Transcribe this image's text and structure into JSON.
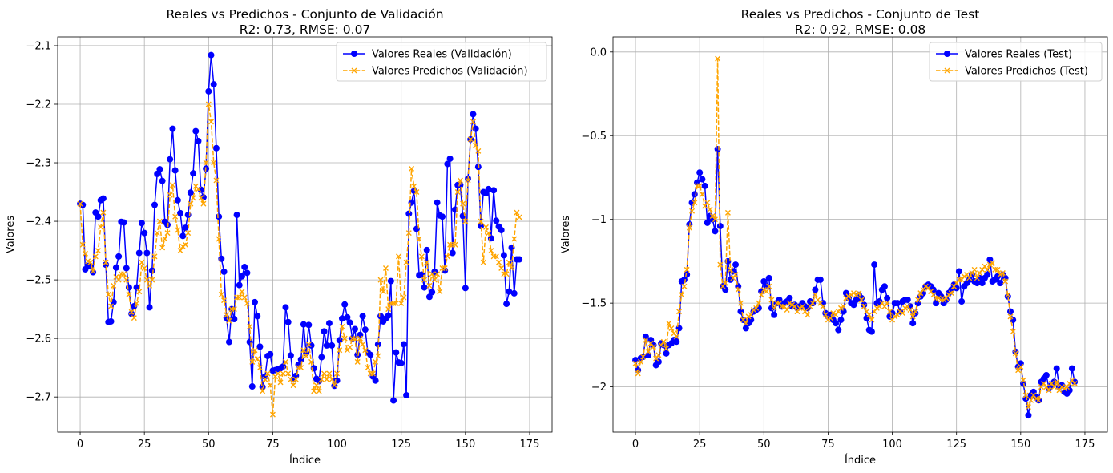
{
  "chart_data": [
    {
      "type": "line",
      "title": "Reales vs Predichos - Conjunto de Validación",
      "subtitle": "R2: 0.73, RMSE: 0.07",
      "xlabel": "Índice",
      "ylabel": "Valores",
      "xlim": [
        -8.75,
        183.75
      ],
      "ylim": [
        -2.76,
        -2.085
      ],
      "xticks": [
        0,
        25,
        50,
        75,
        100,
        125,
        150,
        175
      ],
      "yticks": [
        -2.7,
        -2.6,
        -2.5,
        -2.4,
        -2.3,
        -2.2,
        -2.1
      ],
      "grid": true,
      "legend_position": "top-right",
      "series": [
        {
          "name": "Valores Reales (Validación)",
          "color": "#0000ff",
          "style": "solid",
          "marker": "circle",
          "values": [
            -2.37,
            -2.372,
            -2.482,
            -2.476,
            -2.477,
            -2.487,
            -2.385,
            -2.392,
            -2.364,
            -2.361,
            -2.474,
            -2.572,
            -2.571,
            -2.538,
            -2.479,
            -2.46,
            -2.401,
            -2.402,
            -2.48,
            -2.513,
            -2.558,
            -2.545,
            -2.513,
            -2.454,
            -2.403,
            -2.42,
            -2.454,
            -2.547,
            -2.484,
            -2.372,
            -2.319,
            -2.311,
            -2.331,
            -2.401,
            -2.406,
            -2.294,
            -2.242,
            -2.313,
            -2.364,
            -2.386,
            -2.425,
            -2.411,
            -2.389,
            -2.351,
            -2.318,
            -2.246,
            -2.263,
            -2.346,
            -2.359,
            -2.31,
            -2.178,
            -2.116,
            -2.166,
            -2.275,
            -2.392,
            -2.464,
            -2.486,
            -2.565,
            -2.606,
            -2.55,
            -2.567,
            -2.389,
            -2.509,
            -2.494,
            -2.478,
            -2.488,
            -2.606,
            -2.682,
            -2.538,
            -2.562,
            -2.614,
            -2.683,
            -2.665,
            -2.63,
            -2.627,
            -2.655,
            -2.654,
            -2.652,
            -2.651,
            -2.648,
            -2.547,
            -2.572,
            -2.629,
            -2.67,
            -2.664,
            -2.645,
            -2.636,
            -2.576,
            -2.625,
            -2.577,
            -2.612,
            -2.651,
            -2.669,
            -2.673,
            -2.632,
            -2.588,
            -2.612,
            -2.574,
            -2.612,
            -2.681,
            -2.672,
            -2.603,
            -2.566,
            -2.542,
            -2.564,
            -2.573,
            -2.6,
            -2.584,
            -2.628,
            -2.594,
            -2.562,
            -2.585,
            -2.624,
            -2.628,
            -2.665,
            -2.672,
            -2.61,
            -2.562,
            -2.571,
            -2.566,
            -2.561,
            -2.502,
            -2.706,
            -2.624,
            -2.641,
            -2.642,
            -2.61,
            -2.697,
            -2.387,
            -2.368,
            -2.348,
            -2.413,
            -2.492,
            -2.491,
            -2.513,
            -2.449,
            -2.529,
            -2.521,
            -2.486,
            -2.368,
            -2.39,
            -2.392,
            -2.484,
            -2.302,
            -2.293,
            -2.454,
            -2.38,
            -2.338,
            -2.338,
            -2.391,
            -2.514,
            -2.327,
            -2.26,
            -2.217,
            -2.242,
            -2.307,
            -2.408,
            -2.35,
            -2.352,
            -2.345,
            -2.429,
            -2.347,
            -2.399,
            -2.409,
            -2.415,
            -2.458,
            -2.541,
            -2.52,
            -2.445,
            -2.523,
            -2.465,
            -2.465
          ]
        },
        {
          "name": "Valores Predichos (Validación)",
          "color": "#ffa500",
          "style": "dashed",
          "marker": "x",
          "values": [
            -2.37,
            -2.44,
            -2.455,
            -2.468,
            -2.47,
            -2.485,
            -2.46,
            -2.45,
            -2.41,
            -2.385,
            -2.47,
            -2.525,
            -2.545,
            -2.51,
            -2.495,
            -2.5,
            -2.49,
            -2.49,
            -2.5,
            -2.525,
            -2.555,
            -2.565,
            -2.54,
            -2.52,
            -2.47,
            -2.48,
            -2.5,
            -2.51,
            -2.5,
            -2.46,
            -2.42,
            -2.4,
            -2.445,
            -2.43,
            -2.42,
            -2.355,
            -2.338,
            -2.392,
            -2.415,
            -2.45,
            -2.443,
            -2.44,
            -2.42,
            -2.37,
            -2.36,
            -2.34,
            -2.345,
            -2.36,
            -2.37,
            -2.3,
            -2.2,
            -2.23,
            -2.3,
            -2.33,
            -2.43,
            -2.525,
            -2.535,
            -2.56,
            -2.57,
            -2.55,
            -2.55,
            -2.53,
            -2.53,
            -2.52,
            -2.53,
            -2.54,
            -2.58,
            -2.64,
            -2.62,
            -2.635,
            -2.65,
            -2.69,
            -2.67,
            -2.66,
            -2.68,
            -2.73,
            -2.665,
            -2.66,
            -2.675,
            -2.66,
            -2.64,
            -2.66,
            -2.67,
            -2.68,
            -2.67,
            -2.65,
            -2.65,
            -2.62,
            -2.63,
            -2.61,
            -2.64,
            -2.69,
            -2.68,
            -2.69,
            -2.67,
            -2.66,
            -2.67,
            -2.66,
            -2.67,
            -2.68,
            -2.66,
            -2.62,
            -2.58,
            -2.6,
            -2.62,
            -2.615,
            -2.6,
            -2.6,
            -2.64,
            -2.6,
            -2.61,
            -2.62,
            -2.65,
            -2.66,
            -2.66,
            -2.64,
            -2.63,
            -2.5,
            -2.52,
            -2.48,
            -2.55,
            -2.54,
            -2.54,
            -2.54,
            -2.46,
            -2.54,
            -2.53,
            -2.47,
            -2.42,
            -2.31,
            -2.34,
            -2.35,
            -2.43,
            -2.46,
            -2.5,
            -2.47,
            -2.51,
            -2.49,
            -2.5,
            -2.49,
            -2.52,
            -2.48,
            -2.48,
            -2.46,
            -2.44,
            -2.44,
            -2.44,
            -2.35,
            -2.33,
            -2.37,
            -2.4,
            -2.33,
            -2.26,
            -2.23,
            -2.27,
            -2.28,
            -2.4,
            -2.47,
            -2.41,
            -2.42,
            -2.45,
            -2.46,
            -2.46,
            -2.47,
            -2.48,
            -2.49,
            -2.49,
            -2.47,
            -2.48,
            -2.43,
            -2.385,
            -2.393
          ]
        }
      ]
    },
    {
      "type": "line",
      "title": "Reales vs Predichos - Conjunto de Test",
      "subtitle": "R2: 0.92, RMSE: 0.08",
      "xlabel": "Índice",
      "ylabel": "Valores",
      "xlim": [
        -8.75,
        183.75
      ],
      "ylim": [
        -2.27,
        0.09
      ],
      "xticks": [
        0,
        25,
        50,
        75,
        100,
        125,
        150,
        175
      ],
      "yticks": [
        -2.0,
        -1.5,
        -1.0,
        -0.5,
        0.0
      ],
      "grid": true,
      "legend_position": "top-right",
      "series": [
        {
          "name": "Valores Reales (Test)",
          "color": "#0000ff",
          "style": "solid",
          "marker": "circle",
          "values": [
            -1.84,
            -1.9,
            -1.83,
            -1.82,
            -1.7,
            -1.81,
            -1.72,
            -1.75,
            -1.87,
            -1.85,
            -1.74,
            -1.75,
            -1.8,
            -1.75,
            -1.74,
            -1.72,
            -1.73,
            -1.65,
            -1.37,
            -1.36,
            -1.33,
            -1.03,
            -0.9,
            -0.85,
            -0.78,
            -0.72,
            -0.76,
            -0.8,
            -1.02,
            -0.98,
            -1.0,
            -1.07,
            -0.58,
            -1.04,
            -1.4,
            -1.42,
            -1.25,
            -1.36,
            -1.31,
            -1.27,
            -1.4,
            -1.55,
            -1.6,
            -1.65,
            -1.62,
            -1.6,
            -1.55,
            -1.54,
            -1.53,
            -1.43,
            -1.37,
            -1.4,
            -1.35,
            -1.53,
            -1.57,
            -1.5,
            -1.48,
            -1.52,
            -1.5,
            -1.49,
            -1.47,
            -1.52,
            -1.51,
            -1.53,
            -1.52,
            -1.5,
            -1.52,
            -1.53,
            -1.49,
            -1.5,
            -1.42,
            -1.36,
            -1.36,
            -1.5,
            -1.56,
            -1.58,
            -1.57,
            -1.6,
            -1.62,
            -1.66,
            -1.6,
            -1.55,
            -1.44,
            -1.47,
            -1.5,
            -1.51,
            -1.48,
            -1.45,
            -1.47,
            -1.51,
            -1.59,
            -1.66,
            -1.67,
            -1.27,
            -1.5,
            -1.49,
            -1.42,
            -1.4,
            -1.47,
            -1.58,
            -1.56,
            -1.5,
            -1.5,
            -1.55,
            -1.49,
            -1.48,
            -1.48,
            -1.52,
            -1.62,
            -1.56,
            -1.5,
            -1.46,
            -1.44,
            -1.4,
            -1.39,
            -1.4,
            -1.42,
            -1.5,
            -1.44,
            -1.46,
            -1.5,
            -1.48,
            -1.44,
            -1.42,
            -1.39,
            -1.41,
            -1.31,
            -1.49,
            -1.4,
            -1.38,
            -1.36,
            -1.33,
            -1.37,
            -1.38,
            -1.35,
            -1.38,
            -1.35,
            -1.33,
            -1.24,
            -1.37,
            -1.36,
            -1.34,
            -1.38,
            -1.33,
            -1.35,
            -1.46,
            -1.55,
            -1.6,
            -1.79,
            -1.88,
            -1.86,
            -1.98,
            -2.07,
            -2.17,
            -2.05,
            -2.03,
            -2.06,
            -2.08,
            -1.97,
            -1.95,
            -1.93,
            -2.01,
            -1.99,
            -1.97,
            -1.89,
            -2.0,
            -1.99,
            -2.03,
            -2.04,
            -2.02,
            -1.89,
            -1.97
          ]
        },
        {
          "name": "Valores Predichos (Test)",
          "color": "#ffa500",
          "style": "dashed",
          "marker": "x",
          "values": [
            -1.86,
            -1.92,
            -1.85,
            -1.82,
            -1.72,
            -1.79,
            -1.74,
            -1.76,
            -1.83,
            -1.81,
            -1.75,
            -1.73,
            -1.77,
            -1.62,
            -1.65,
            -1.68,
            -1.7,
            -1.55,
            -1.45,
            -1.4,
            -1.3,
            -1.05,
            -0.95,
            -0.9,
            -0.8,
            -0.8,
            -0.85,
            -0.92,
            -0.9,
            -0.94,
            -0.98,
            -1.0,
            -0.04,
            -1.27,
            -1.4,
            -1.38,
            -0.96,
            -1.3,
            -1.35,
            -1.33,
            -1.42,
            -1.5,
            -1.6,
            -1.62,
            -1.58,
            -1.57,
            -1.54,
            -1.53,
            -1.5,
            -1.45,
            -1.42,
            -1.43,
            -1.4,
            -1.48,
            -1.53,
            -1.5,
            -1.5,
            -1.52,
            -1.52,
            -1.54,
            -1.5,
            -1.51,
            -1.52,
            -1.55,
            -1.53,
            -1.52,
            -1.55,
            -1.57,
            -1.52,
            -1.5,
            -1.45,
            -1.48,
            -1.5,
            -1.52,
            -1.57,
            -1.6,
            -1.59,
            -1.56,
            -1.57,
            -1.55,
            -1.53,
            -1.52,
            -1.47,
            -1.46,
            -1.45,
            -1.44,
            -1.45,
            -1.44,
            -1.48,
            -1.52,
            -1.55,
            -1.57,
            -1.6,
            -1.55,
            -1.53,
            -1.52,
            -1.5,
            -1.52,
            -1.5,
            -1.55,
            -1.6,
            -1.58,
            -1.57,
            -1.55,
            -1.56,
            -1.53,
            -1.52,
            -1.54,
            -1.58,
            -1.55,
            -1.48,
            -1.44,
            -1.42,
            -1.4,
            -1.41,
            -1.43,
            -1.45,
            -1.47,
            -1.47,
            -1.48,
            -1.48,
            -1.47,
            -1.45,
            -1.44,
            -1.4,
            -1.38,
            -1.36,
            -1.36,
            -1.34,
            -1.33,
            -1.35,
            -1.32,
            -1.3,
            -1.35,
            -1.32,
            -1.3,
            -1.28,
            -1.3,
            -1.27,
            -1.26,
            -1.3,
            -1.3,
            -1.33,
            -1.32,
            -1.37,
            -1.45,
            -1.58,
            -1.67,
            -1.8,
            -1.9,
            -1.88,
            -1.96,
            -2.05,
            -2.12,
            -2.08,
            -2.05,
            -2.07,
            -2.08,
            -2.0,
            -1.98,
            -2.0,
            -2.02,
            -1.98,
            -2.0,
            -1.97,
            -2.02,
            -2.0,
            -2.01,
            -2.0,
            -1.98,
            -1.96,
            -1.98
          ]
        }
      ]
    }
  ]
}
